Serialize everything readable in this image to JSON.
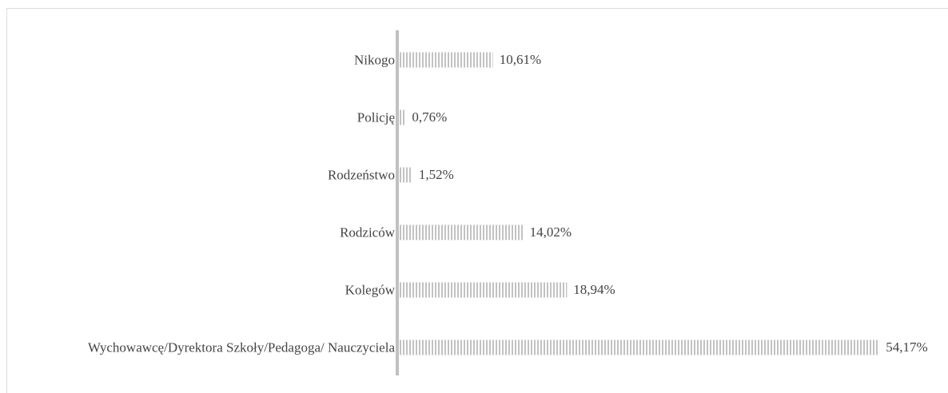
{
  "chart_data": {
    "type": "bar",
    "orientation": "horizontal",
    "categories": [
      "Nikogo",
      "Policję",
      "Rodzeństwo",
      "Rodziców",
      "Kolegów",
      "Wychowawcę/Dyrektora Szkoły/Pedagoga/ Nauczyciela"
    ],
    "values": [
      10.61,
      0.76,
      1.52,
      14.02,
      18.94,
      54.17
    ],
    "value_labels": [
      "10,61%",
      "0,76%",
      "1,52%",
      "14,02%",
      "18,94%",
      "54,17%"
    ],
    "color": "#9a9a9a"
  }
}
